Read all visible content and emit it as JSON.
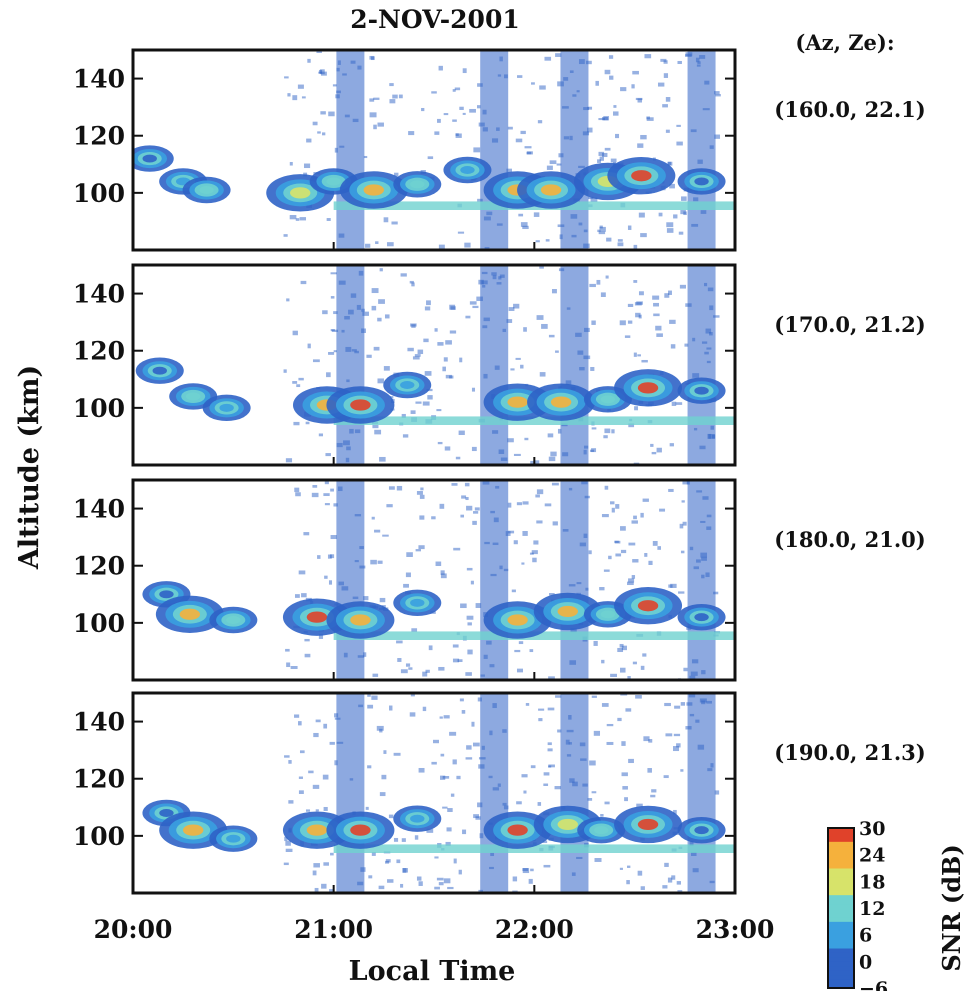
{
  "chart_data": {
    "type": "heatmap",
    "title": "2-NOV-2001",
    "xlabel": "Local Time",
    "ylabel": "Altitude (km)",
    "x_ticks": [
      "20:00",
      "21:00",
      "22:00",
      "23:00"
    ],
    "xlim": [
      "20:00",
      "23:00"
    ],
    "y_ticks": [
      100,
      120,
      140
    ],
    "ylim": [
      80,
      150
    ],
    "beam_header": "(Az, Ze):",
    "panels": [
      {
        "beam": "(160.0, 22.1)",
        "echoes": [
          {
            "t": "20:05",
            "alt": 112,
            "snr": 0
          },
          {
            "t": "20:15",
            "alt": 104,
            "snr": 6
          },
          {
            "t": "20:22",
            "alt": 101,
            "snr": 12
          },
          {
            "t": "20:50",
            "alt": 100,
            "snr": 18
          },
          {
            "t": "21:00",
            "alt": 104,
            "snr": 12
          },
          {
            "t": "21:12",
            "alt": 101,
            "snr": 24
          },
          {
            "t": "21:25",
            "alt": 103,
            "snr": 12
          },
          {
            "t": "21:40",
            "alt": 108,
            "snr": 6
          },
          {
            "t": "21:55",
            "alt": 101,
            "snr": 24
          },
          {
            "t": "22:05",
            "alt": 101,
            "snr": 24
          },
          {
            "t": "22:22",
            "alt": 104,
            "snr": 18
          },
          {
            "t": "22:32",
            "alt": 106,
            "snr": 30
          },
          {
            "t": "22:50",
            "alt": 104,
            "snr": 0
          }
        ]
      },
      {
        "beam": "(170.0, 21.2)",
        "echoes": [
          {
            "t": "20:08",
            "alt": 113,
            "snr": 0
          },
          {
            "t": "20:18",
            "alt": 104,
            "snr": 12
          },
          {
            "t": "20:28",
            "alt": 100,
            "snr": 6
          },
          {
            "t": "20:58",
            "alt": 101,
            "snr": 24
          },
          {
            "t": "21:08",
            "alt": 101,
            "snr": 30
          },
          {
            "t": "21:22",
            "alt": 108,
            "snr": 6
          },
          {
            "t": "21:55",
            "alt": 102,
            "snr": 24
          },
          {
            "t": "22:08",
            "alt": 102,
            "snr": 24
          },
          {
            "t": "22:22",
            "alt": 103,
            "snr": 12
          },
          {
            "t": "22:34",
            "alt": 107,
            "snr": 30
          },
          {
            "t": "22:50",
            "alt": 106,
            "snr": 0
          }
        ]
      },
      {
        "beam": "(180.0, 21.0)",
        "echoes": [
          {
            "t": "20:10",
            "alt": 110,
            "snr": 0
          },
          {
            "t": "20:17",
            "alt": 103,
            "snr": 24
          },
          {
            "t": "20:30",
            "alt": 101,
            "snr": 12
          },
          {
            "t": "20:55",
            "alt": 102,
            "snr": 30
          },
          {
            "t": "21:08",
            "alt": 101,
            "snr": 24
          },
          {
            "t": "21:25",
            "alt": 107,
            "snr": 6
          },
          {
            "t": "21:55",
            "alt": 101,
            "snr": 24
          },
          {
            "t": "22:10",
            "alt": 104,
            "snr": 24
          },
          {
            "t": "22:22",
            "alt": 103,
            "snr": 12
          },
          {
            "t": "22:34",
            "alt": 106,
            "snr": 30
          },
          {
            "t": "22:50",
            "alt": 102,
            "snr": 0
          }
        ]
      },
      {
        "beam": "(190.0, 21.3)",
        "echoes": [
          {
            "t": "20:10",
            "alt": 108,
            "snr": 0
          },
          {
            "t": "20:18",
            "alt": 102,
            "snr": 24
          },
          {
            "t": "20:30",
            "alt": 99,
            "snr": 6
          },
          {
            "t": "20:55",
            "alt": 102,
            "snr": 24
          },
          {
            "t": "21:08",
            "alt": 102,
            "snr": 30
          },
          {
            "t": "21:25",
            "alt": 106,
            "snr": 6
          },
          {
            "t": "21:55",
            "alt": 102,
            "snr": 30
          },
          {
            "t": "22:10",
            "alt": 104,
            "snr": 18
          },
          {
            "t": "22:20",
            "alt": 102,
            "snr": 12
          },
          {
            "t": "22:34",
            "alt": 104,
            "snr": 30
          },
          {
            "t": "22:50",
            "alt": 102,
            "snr": 0
          }
        ]
      }
    ],
    "colorbar": {
      "label": "SNR (dB)",
      "ticks": [
        "30",
        "24",
        "18",
        "12",
        "6",
        "0",
        "−6"
      ],
      "range": [
        -6,
        30
      ],
      "colors": [
        "#ffffff",
        "#2f63c6",
        "#3aa0e0",
        "#6fd2d0",
        "#d7e36a",
        "#f5b13c",
        "#e0422a"
      ]
    }
  }
}
